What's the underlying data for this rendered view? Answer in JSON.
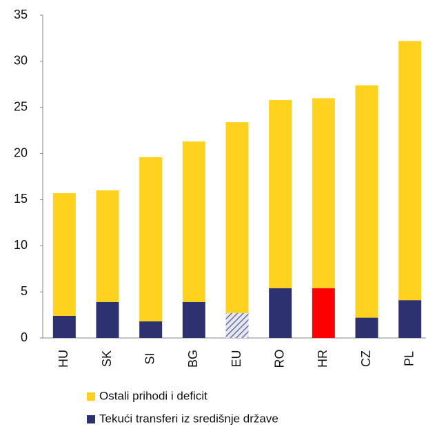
{
  "chart_data": {
    "type": "stacked_bar",
    "categories": [
      "HU",
      "SK",
      "SI",
      "BG",
      "EU",
      "RO",
      "HR",
      "CZ",
      "PL"
    ],
    "series": [
      {
        "name": "Tekući transferi iz središnje države",
        "color": "#2e3170",
        "point_colors": [
          "#2e3170",
          "#2e3170",
          "#2e3170",
          "#2e3170",
          "#2e3170",
          "#2e3170",
          "#ff0000",
          "#2e3170",
          "#2e3170"
        ],
        "hatched": [
          false,
          false,
          false,
          false,
          true,
          false,
          false,
          false,
          false
        ],
        "values": [
          2.4,
          3.9,
          1.8,
          3.9,
          2.7,
          5.4,
          5.4,
          2.2,
          4.1
        ]
      },
      {
        "name": "Ostali prihodi i deficit",
        "color": "#ffd21f",
        "values": [
          13.3,
          12.1,
          17.8,
          17.4,
          20.7,
          20.4,
          20.6,
          25.2,
          28.1
        ]
      }
    ],
    "ylim": [
      0,
      35
    ],
    "yticks": [
      0,
      5,
      10,
      15,
      20,
      25,
      30,
      35
    ],
    "grid": false
  }
}
